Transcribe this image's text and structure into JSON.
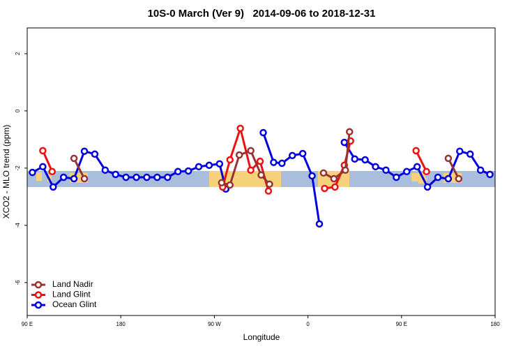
{
  "chart_data": {
    "type": "line",
    "title": "10S-0 March (Ver 9)   2014-09-06 to 2018-12-31",
    "x_label": "Longitude",
    "y_label": "XCO2 - MLO trend (ppm)",
    "xlim": [
      90,
      540
    ],
    "ylim": [
      -7.15,
      2.9
    ],
    "xticks": [
      {
        "value": 90,
        "label": "90 E"
      },
      {
        "value": 180,
        "label": "180"
      },
      {
        "value": 270,
        "label": "90 W"
      },
      {
        "value": 360,
        "label": "0"
      },
      {
        "value": 450,
        "label": "90 E"
      },
      {
        "value": 540,
        "label": "180"
      }
    ],
    "yticks": [
      2,
      0,
      -2,
      -4,
      -6
    ],
    "band": {
      "range": [
        -2.66,
        -2.1
      ],
      "color": "#a9bedc"
    },
    "legend": "bottom-left",
    "series": [
      {
        "name": "Land Nadir",
        "color": "#993333",
        "x": [
          135,
          145,
          200,
          277,
          285,
          294,
          305,
          315,
          323,
          350,
          375,
          385,
          396,
          400,
          450,
          495,
          505
        ],
        "values": [
          -1.66,
          -2.37,
          null,
          -2.51,
          -2.59,
          -1.54,
          -1.39,
          -2.24,
          -2.56,
          null,
          -2.17,
          -2.37,
          -2.07,
          -0.73,
          null,
          -1.66,
          -2.37
        ]
      },
      {
        "name": "Land Glint",
        "color": "#ee1111",
        "x": [
          105,
          114,
          200,
          278,
          285,
          295,
          305,
          314,
          322,
          350,
          376,
          386,
          395,
          401,
          430,
          464,
          474
        ],
        "values": [
          -1.39,
          -2.12,
          null,
          -2.66,
          -1.71,
          -0.61,
          -2.07,
          -1.76,
          -2.8,
          null,
          -2.71,
          -2.66,
          -1.9,
          -1.05,
          null,
          -1.39,
          -2.12
        ]
      },
      {
        "name": "Ocean Glint",
        "color": "#0000dd",
        "x": [
          95,
          105,
          115,
          125,
          135,
          145,
          155,
          165,
          175,
          185,
          195,
          205,
          215,
          225,
          235,
          245,
          255,
          265,
          275,
          281,
          300,
          317,
          327,
          335,
          345,
          355,
          364,
          371,
          385,
          395,
          405,
          415,
          425,
          435,
          445,
          455,
          465,
          475,
          485,
          495,
          506,
          516,
          526,
          535
        ],
        "values": [
          -2.15,
          -1.95,
          -2.66,
          -2.32,
          -2.37,
          -1.41,
          -1.51,
          -2.07,
          -2.22,
          -2.32,
          -2.32,
          -2.32,
          -2.32,
          -2.32,
          -2.12,
          -2.1,
          -1.95,
          -1.9,
          -1.85,
          -2.73,
          null,
          -0.76,
          -1.8,
          -1.83,
          -1.56,
          -1.49,
          -2.27,
          -3.95,
          null,
          -1.1,
          -1.68,
          -1.71,
          -1.95,
          -2.07,
          -2.32,
          -2.12,
          -1.95,
          -2.66,
          -2.32,
          -2.37,
          -1.41,
          -1.51,
          -2.07,
          -2.22
        ]
      }
    ]
  }
}
